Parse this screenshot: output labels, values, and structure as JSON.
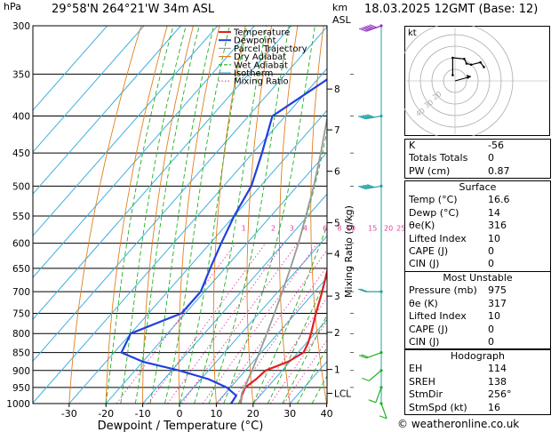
{
  "header": {
    "pressure_unit": "hPa",
    "location": "29°58'N  264°21'W  34m  ASL",
    "height_unit_km": "km",
    "height_unit_asl": "ASL",
    "datetime": "18.03.2025  12GMT  (Base: 12)"
  },
  "footer": {
    "copyright": "© weatheronline.co.uk"
  },
  "chart_data": {
    "type": "skew-t",
    "xlabel": "Dewpoint / Temperature (°C)",
    "ylabel_left": "hPa",
    "ylabel_right": "Mixing Ratio (g/kg)",
    "x_ticks": [
      -30,
      -20,
      -10,
      0,
      10,
      20,
      30,
      40
    ],
    "x_tick_labels": [
      "-30",
      "-20",
      "-10",
      "0",
      "10",
      "20",
      "30",
      "40"
    ],
    "pressure_levels": [
      300,
      350,
      400,
      450,
      500,
      550,
      600,
      650,
      700,
      750,
      800,
      850,
      900,
      950,
      1000
    ],
    "pressure_labels": [
      "300",
      "350",
      "400",
      "450",
      "500",
      "550",
      "600",
      "650",
      "700",
      "750",
      "800",
      "850",
      "900",
      "950",
      "1000"
    ],
    "km_ticks": [
      {
        "label": "8",
        "p": 367
      },
      {
        "label": "7",
        "p": 418
      },
      {
        "label": "6",
        "p": 477
      },
      {
        "label": "5",
        "p": 562
      },
      {
        "label": "4",
        "p": 620
      },
      {
        "label": "3",
        "p": 710
      },
      {
        "label": "2",
        "p": 797
      },
      {
        "label": "1",
        "p": 897
      },
      {
        "label": "LCL",
        "p": 968
      }
    ],
    "mixing_ratio_labels": [
      "1",
      "2",
      "3",
      "4",
      "6",
      "8",
      "10",
      "15",
      "20",
      "25"
    ],
    "mixing_ratio_label_pressure": 580,
    "legend": [
      {
        "name": "Temperature",
        "color": "#e02020"
      },
      {
        "name": "Dewpoint",
        "color": "#2040e0"
      },
      {
        "name": "Parcel Trajectory",
        "color": "#999999"
      },
      {
        "name": "Dry Adiabat",
        "color": "#e08020"
      },
      {
        "name": "Wet Adiabat",
        "color": "#20b020"
      },
      {
        "name": "Isotherm",
        "color": "#40b0e0"
      },
      {
        "name": "Mixing Ratio",
        "color": "#e040a0"
      }
    ],
    "series": [
      {
        "name": "Temperature",
        "color": "#e02020",
        "points": [
          [
            1000,
            16.6
          ],
          [
            975,
            15.0
          ],
          [
            950,
            14.0
          ],
          [
            925,
            15.0
          ],
          [
            900,
            15.5
          ],
          [
            875,
            19.5
          ],
          [
            850,
            21.5
          ],
          [
            825,
            20.5
          ],
          [
            800,
            19.0
          ],
          [
            750,
            15.5
          ],
          [
            700,
            12.0
          ],
          [
            650,
            8.0
          ],
          [
            600,
            3.0
          ],
          [
            550,
            -2.5
          ],
          [
            500,
            -8.5
          ],
          [
            450,
            -15.5
          ],
          [
            400,
            -23.5
          ],
          [
            350,
            -32.5
          ],
          [
            300,
            -42.5
          ]
        ]
      },
      {
        "name": "Dewpoint",
        "color": "#2040e0",
        "points": [
          [
            1000,
            14.0
          ],
          [
            975,
            13.5
          ],
          [
            950,
            9.0
          ],
          [
            925,
            2.0
          ],
          [
            900,
            -8.0
          ],
          [
            875,
            -20.0
          ],
          [
            850,
            -28.0
          ],
          [
            800,
            -30.0
          ],
          [
            750,
            -21.0
          ],
          [
            700,
            -21.0
          ],
          [
            650,
            -24.0
          ],
          [
            600,
            -27.0
          ],
          [
            550,
            -30.0
          ],
          [
            500,
            -32.5
          ],
          [
            450,
            -37.5
          ],
          [
            400,
            -43.5
          ],
          [
            350,
            -36.5
          ],
          [
            300,
            -49.0
          ]
        ]
      },
      {
        "name": "Parcel Trajectory",
        "color": "#999999",
        "points": [
          [
            1000,
            16.6
          ],
          [
            968,
            14.5
          ],
          [
            900,
            11.8
          ],
          [
            850,
            9.5
          ],
          [
            800,
            7.0
          ],
          [
            750,
            4.2
          ],
          [
            700,
            1.2
          ],
          [
            650,
            -2.2
          ],
          [
            600,
            -6.0
          ],
          [
            550,
            -10.5
          ],
          [
            500,
            -15.5
          ],
          [
            450,
            -21.5
          ],
          [
            400,
            -28.5
          ],
          [
            350,
            -37.0
          ],
          [
            300,
            -47.0
          ]
        ]
      }
    ],
    "wind_barbs": [
      {
        "p": 300,
        "dir": 250,
        "speed": 65
      },
      {
        "p": 400,
        "dir": 260,
        "speed": 50
      },
      {
        "p": 500,
        "dir": 260,
        "speed": 45
      },
      {
        "p": 700,
        "dir": 270,
        "speed": 20
      },
      {
        "p": 850,
        "dir": 250,
        "speed": 15
      },
      {
        "p": 900,
        "dir": 230,
        "speed": 12
      },
      {
        "p": 950,
        "dir": 200,
        "speed": 10
      },
      {
        "p": 1000,
        "dir": 160,
        "speed": 8
      }
    ],
    "hodograph": {
      "unit": "kt",
      "ring_labels": [
        "20",
        "30",
        "40"
      ],
      "points": [
        [
          -2,
          5
        ],
        [
          -2,
          20
        ],
        [
          8,
          19
        ],
        [
          10,
          15
        ],
        [
          14,
          14
        ],
        [
          22,
          16
        ],
        [
          25,
          12
        ]
      ],
      "storm_motion": [
        2,
        -3
      ]
    }
  },
  "indices": [
    {
      "label": "K",
      "value": "-56"
    },
    {
      "label": "Totals Totals",
      "value": "0"
    },
    {
      "label": "PW (cm)",
      "value": "0.87"
    }
  ],
  "surface": {
    "title": "Surface",
    "rows": [
      {
        "label": "Temp (°C)",
        "value": "16.6"
      },
      {
        "label": "Dewp (°C)",
        "value": "14"
      },
      {
        "label": "θe(K)",
        "value": "316"
      },
      {
        "label": "Lifted Index",
        "value": "10"
      },
      {
        "label": "CAPE (J)",
        "value": "0"
      },
      {
        "label": "CIN (J)",
        "value": "0"
      }
    ]
  },
  "most_unstable": {
    "title": "Most Unstable",
    "rows": [
      {
        "label": "Pressure (mb)",
        "value": "975"
      },
      {
        "label": "θe (K)",
        "value": "317"
      },
      {
        "label": "Lifted Index",
        "value": "10"
      },
      {
        "label": "CAPE (J)",
        "value": "0"
      },
      {
        "label": "CIN (J)",
        "value": "0"
      }
    ]
  },
  "hodograph_table": {
    "title": "Hodograph",
    "rows": [
      {
        "label": "EH",
        "value": "114"
      },
      {
        "label": "SREH",
        "value": "138"
      },
      {
        "label": "StmDir",
        "value": "256°"
      },
      {
        "label": "StmSpd (kt)",
        "value": "16"
      }
    ]
  }
}
